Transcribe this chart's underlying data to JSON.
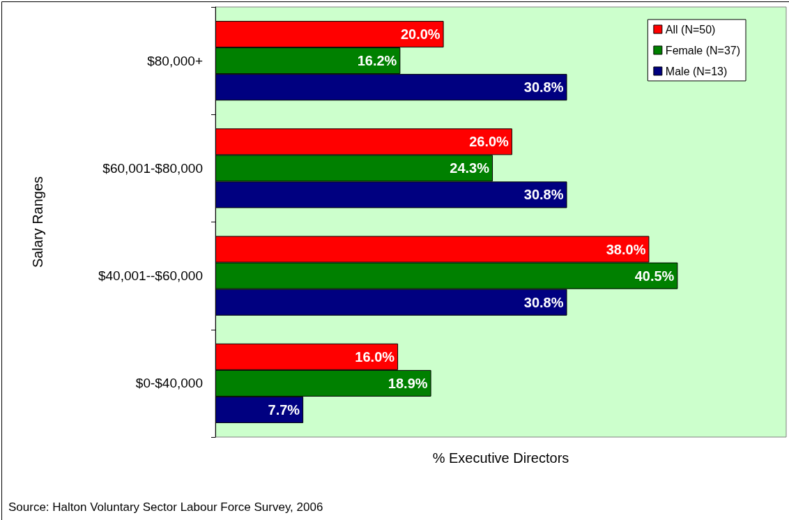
{
  "chart_data": {
    "type": "bar",
    "orientation": "horizontal",
    "xlabel": "% Executive Directors",
    "ylabel": "Salary Ranges",
    "categories": [
      "$80,000+",
      "$60,001-$80,000",
      "$40,001--$60,000",
      "$0-$40,000"
    ],
    "series": [
      {
        "name": "All (N=50)",
        "color": "#ff0000",
        "values": [
          20.0,
          26.0,
          38.0,
          16.0
        ],
        "value_labels": [
          "20.0%",
          "26.0%",
          "38.0%",
          "16.0%"
        ]
      },
      {
        "name": "Female (N=37)",
        "color": "#008000",
        "values": [
          16.2,
          24.3,
          40.5,
          18.9
        ],
        "value_labels": [
          "16.2%",
          "24.3%",
          "40.5%",
          "18.9%"
        ]
      },
      {
        "name": "Male (N=13)",
        "color": "#000080",
        "values": [
          30.8,
          30.8,
          30.8,
          7.7
        ],
        "value_labels": [
          "30.8%",
          "30.8%",
          "30.8%",
          "7.7%"
        ]
      }
    ],
    "legend": "top right",
    "grid": false,
    "tick_labels": "y",
    "annotations": [
      "Source: Halton Voluntary Sector Labour Force Survey, 2006"
    ]
  }
}
